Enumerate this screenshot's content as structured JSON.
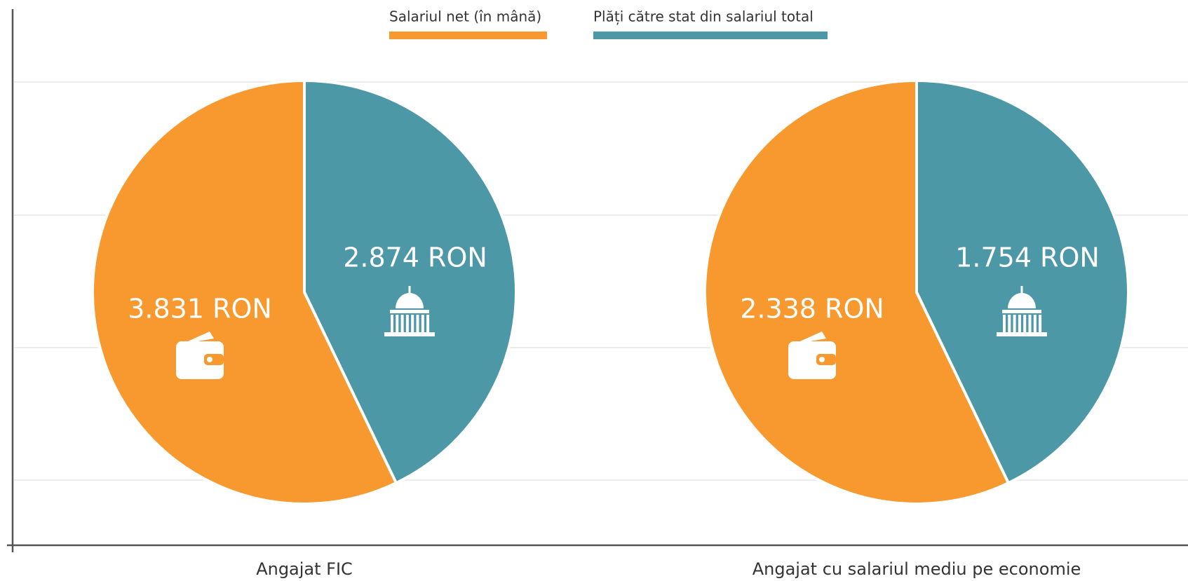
{
  "chart_data": {
    "type": "pie",
    "categories": [
      "Angajat FIC",
      "Angajat cu salariul mediu pe economie"
    ],
    "series": [
      {
        "name": "Salariul net (în mână)",
        "color": "#f7992f",
        "values": [
          3831,
          2338
        ],
        "value_labels": [
          "3.831 RON",
          "2.338 RON"
        ]
      },
      {
        "name": "Plăți către stat din salariul total",
        "color": "#4d98a6",
        "values": [
          2874,
          1754
        ],
        "value_labels": [
          "2.874 RON",
          "1.754 RON"
        ]
      }
    ]
  }
}
